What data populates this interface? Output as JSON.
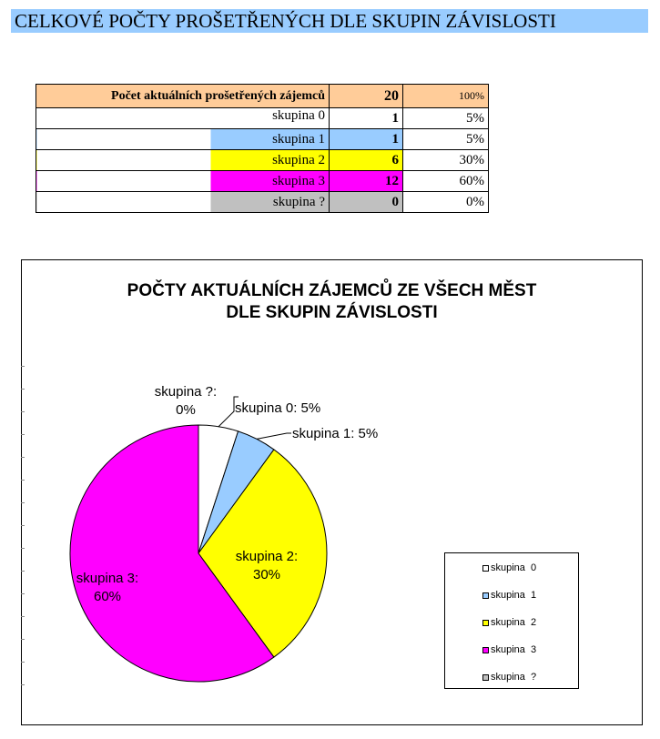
{
  "page": {
    "title": "CELKOVÉ POČTY PROŠETŘENÝCH DLE SKUPIN ZÁVISLOSTI"
  },
  "table": {
    "header": {
      "label": "Počet aktuálních prošetřených zájemců",
      "count": "20",
      "pct": "100%"
    },
    "rows": [
      {
        "label": "skupina  0",
        "count": "1",
        "pct": "5%",
        "color": "#ffffff"
      },
      {
        "label": "skupina  1",
        "count": "1",
        "pct": "5%",
        "color": "#99ccff"
      },
      {
        "label": "skupina  2",
        "count": "6",
        "pct": "30%",
        "color": "#ffff00"
      },
      {
        "label": "skupina  3",
        "count": "12",
        "pct": "60%",
        "color": "#ff00ff"
      },
      {
        "label": "skupina  ?",
        "count": "0",
        "pct": "0%",
        "color": "#c0c0c0"
      }
    ]
  },
  "chart_data": {
    "type": "pie",
    "title": "POČTY AKTUÁLNÍCH ZÁJEMCŮ ZE VŠECH MĚST\nDLE SKUPIN ZÁVISLOSTI",
    "title_lines": [
      "POČTY AKTUÁLNÍCH ZÁJEMCŮ ZE VŠECH MĚST",
      "DLE SKUPIN ZÁVISLOSTI"
    ],
    "categories": [
      "skupina  0",
      "skupina  1",
      "skupina  2",
      "skupina  3",
      "skupina  ?"
    ],
    "values": [
      5,
      5,
      30,
      60,
      0
    ],
    "colors": [
      "#ffffff",
      "#99ccff",
      "#ffff00",
      "#ff00ff",
      "#c0c0c0"
    ],
    "data_labels": [
      [
        "skupina  0:  5%"
      ],
      [
        "skupina  1:   5%"
      ],
      [
        "skupina  2:",
        "30%"
      ],
      [
        "skupina  3:",
        "60%"
      ],
      [
        "skupina  ?:",
        "0%"
      ]
    ],
    "legend": [
      "skupina  0",
      "skupina  1",
      "skupina  2",
      "skupina  3",
      "skupina  ?"
    ],
    "legend_position": "right"
  }
}
